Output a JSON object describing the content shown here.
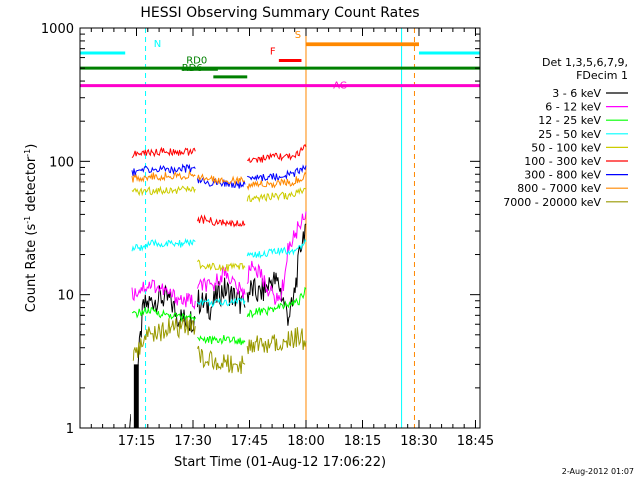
{
  "chart_data": {
    "type": "line",
    "title": "HESSI Observing Summary Count Rates",
    "xlabel": "Start Time (01-Aug-12 17:06:22)",
    "ylabel_main": "Count Rate (s",
    "ylabel_sup1": "-1",
    "ylabel_mid": " detector",
    "ylabel_sup2": "-1",
    "ylabel_end": ")",
    "yscale": "log",
    "ylim": [
      1,
      1000
    ],
    "xlim_minutes": [
      17.0,
      18.77
    ],
    "x_ticks": [
      "17:15",
      "17:30",
      "17:45",
      "18:00",
      "18:15",
      "18:30",
      "18:45"
    ],
    "x_tick_minutes": [
      17.25,
      17.5,
      17.75,
      18.0,
      18.25,
      18.5,
      18.75
    ],
    "y_ticks": [
      "1",
      "10",
      "100",
      "1000"
    ],
    "y_tick_values": [
      1,
      10,
      100,
      1000
    ],
    "legend_header": [
      "Det 1,3,5,6,7,9,",
      "FDecim 1"
    ],
    "series": [
      {
        "name": "3 - 6 keV",
        "color": "#000000",
        "segments": [
          [
            [
              17.22,
              1
            ],
            [
              17.23,
              1.1
            ],
            [
              17.25,
              2.2
            ],
            [
              17.28,
              8
            ],
            [
              17.32,
              9
            ],
            [
              17.36,
              9.5
            ],
            [
              17.4,
              9
            ],
            [
              17.43,
              7
            ],
            [
              17.46,
              6.5
            ],
            [
              17.49,
              6.5
            ],
            [
              17.51,
              6.6
            ]
          ],
          [
            [
              17.52,
              9
            ],
            [
              17.55,
              8.5
            ],
            [
              17.58,
              8
            ],
            [
              17.61,
              10
            ],
            [
              17.64,
              11
            ],
            [
              17.67,
              10
            ],
            [
              17.7,
              9
            ],
            [
              17.73,
              8
            ]
          ],
          [
            [
              17.74,
              10
            ],
            [
              17.76,
              11
            ],
            [
              17.79,
              10
            ],
            [
              17.82,
              11
            ],
            [
              17.85,
              13
            ],
            [
              17.88,
              12
            ],
            [
              17.9,
              9
            ],
            [
              17.92,
              7
            ],
            [
              17.94,
              8
            ],
            [
              17.96,
              14
            ],
            [
              17.98,
              25
            ],
            [
              18.0,
              34
            ]
          ]
        ]
      },
      {
        "name": "6 - 12 keV",
        "color": "#ff00ff",
        "segments": [
          [
            [
              17.23,
              10
            ],
            [
              17.28,
              11.5
            ],
            [
              17.32,
              12
            ],
            [
              17.36,
              11
            ],
            [
              17.4,
              10
            ],
            [
              17.43,
              9.5
            ],
            [
              17.46,
              9
            ],
            [
              17.49,
              9
            ],
            [
              17.51,
              9
            ]
          ],
          [
            [
              17.52,
              11
            ],
            [
              17.55,
              12
            ],
            [
              17.58,
              11
            ],
            [
              17.61,
              13
            ],
            [
              17.64,
              15
            ],
            [
              17.67,
              13
            ],
            [
              17.7,
              11
            ],
            [
              17.73,
              10
            ]
          ],
          [
            [
              17.74,
              13
            ],
            [
              17.76,
              17
            ],
            [
              17.79,
              15
            ],
            [
              17.82,
              12
            ],
            [
              17.85,
              10
            ],
            [
              17.88,
              9
            ],
            [
              17.9,
              12
            ],
            [
              17.92,
              22
            ],
            [
              17.95,
              28
            ],
            [
              17.98,
              36
            ],
            [
              18.0,
              42
            ]
          ]
        ]
      },
      {
        "name": "12 - 25 keV",
        "color": "#00ff00",
        "segments": [
          [
            [
              17.23,
              7
            ],
            [
              17.28,
              7.5
            ],
            [
              17.32,
              7.5
            ],
            [
              17.36,
              7.2
            ],
            [
              17.4,
              7
            ],
            [
              17.45,
              6.8
            ],
            [
              17.51,
              6.8
            ]
          ],
          [
            [
              17.52,
              4.8
            ],
            [
              17.56,
              4.6
            ],
            [
              17.6,
              4.5
            ],
            [
              17.65,
              4.7
            ],
            [
              17.7,
              4.5
            ],
            [
              17.73,
              4.4
            ]
          ],
          [
            [
              17.74,
              7
            ],
            [
              17.78,
              7.5
            ],
            [
              17.82,
              7.5
            ],
            [
              17.86,
              7.8
            ],
            [
              17.9,
              8.2
            ],
            [
              17.94,
              8.5
            ],
            [
              17.97,
              9
            ],
            [
              18.0,
              11
            ]
          ]
        ]
      },
      {
        "name": "25 - 50 keV",
        "color": "#00ffff",
        "segments": [
          [
            [
              17.23,
              22
            ],
            [
              17.28,
              23
            ],
            [
              17.32,
              24
            ],
            [
              17.36,
              24
            ],
            [
              17.4,
              24
            ],
            [
              17.45,
              24
            ],
            [
              17.51,
              25
            ]
          ],
          [
            [
              17.52,
              9
            ],
            [
              17.56,
              8.8
            ],
            [
              17.6,
              8.6
            ],
            [
              17.65,
              8.8
            ],
            [
              17.7,
              9
            ],
            [
              17.73,
              9
            ]
          ],
          [
            [
              17.74,
              20
            ],
            [
              17.78,
              20
            ],
            [
              17.82,
              20.5
            ],
            [
              17.86,
              21
            ],
            [
              17.9,
              21
            ],
            [
              17.94,
              21.5
            ],
            [
              17.97,
              23
            ],
            [
              18.0,
              25
            ]
          ]
        ]
      },
      {
        "name": "50 - 100 keV",
        "color": "#cccc00",
        "segments": [
          [
            [
              17.23,
              58
            ],
            [
              17.28,
              60
            ],
            [
              17.32,
              60
            ],
            [
              17.36,
              61
            ],
            [
              17.4,
              61
            ],
            [
              17.45,
              61
            ],
            [
              17.51,
              62
            ]
          ],
          [
            [
              17.52,
              17
            ],
            [
              17.56,
              16.5
            ],
            [
              17.6,
              16.5
            ],
            [
              17.65,
              16
            ],
            [
              17.7,
              16
            ],
            [
              17.73,
              16
            ]
          ],
          [
            [
              17.74,
              53
            ],
            [
              17.78,
              54
            ],
            [
              17.82,
              54
            ],
            [
              17.86,
              55
            ],
            [
              17.9,
              55
            ],
            [
              17.94,
              56
            ],
            [
              17.97,
              58
            ],
            [
              18.0,
              62
            ]
          ]
        ]
      },
      {
        "name": "100 - 300 keV",
        "color": "#ff0000",
        "segments": [
          [
            [
              17.23,
              112
            ],
            [
              17.28,
              115
            ],
            [
              17.32,
              117
            ],
            [
              17.36,
              118
            ],
            [
              17.4,
              118
            ],
            [
              17.45,
              118
            ],
            [
              17.51,
              119
            ]
          ],
          [
            [
              17.52,
              37
            ],
            [
              17.56,
              36
            ],
            [
              17.6,
              35
            ],
            [
              17.65,
              34
            ],
            [
              17.7,
              34
            ],
            [
              17.73,
              34
            ]
          ],
          [
            [
              17.74,
              102
            ],
            [
              17.78,
              104
            ],
            [
              17.82,
              105
            ],
            [
              17.86,
              107
            ],
            [
              17.9,
              108
            ],
            [
              17.94,
              110
            ],
            [
              17.97,
              115
            ],
            [
              18.0,
              128
            ]
          ]
        ]
      },
      {
        "name": "300 - 800 keV",
        "color": "#0000ff",
        "segments": [
          [
            [
              17.23,
              83
            ],
            [
              17.28,
              86
            ],
            [
              17.32,
              87
            ],
            [
              17.36,
              87
            ],
            [
              17.4,
              87
            ],
            [
              17.45,
              88
            ],
            [
              17.51,
              88
            ]
          ],
          [
            [
              17.52,
              71
            ],
            [
              17.56,
              70
            ],
            [
              17.6,
              69
            ],
            [
              17.65,
              68
            ],
            [
              17.7,
              67
            ],
            [
              17.73,
              67
            ]
          ],
          [
            [
              17.74,
              74
            ],
            [
              17.78,
              75
            ],
            [
              17.82,
              76
            ],
            [
              17.86,
              77
            ],
            [
              17.9,
              78
            ],
            [
              17.94,
              80
            ],
            [
              17.97,
              85
            ],
            [
              18.0,
              93
            ]
          ]
        ]
      },
      {
        "name": "800 - 7000 keV",
        "color": "#ff8800",
        "segments": [
          [
            [
              17.23,
              74
            ],
            [
              17.28,
              76
            ],
            [
              17.32,
              77
            ],
            [
              17.36,
              77
            ],
            [
              17.4,
              78
            ],
            [
              17.45,
              78
            ],
            [
              17.51,
              78
            ]
          ],
          [
            [
              17.52,
              75
            ],
            [
              17.56,
              74
            ],
            [
              17.6,
              73
            ],
            [
              17.65,
              72
            ],
            [
              17.7,
              72
            ],
            [
              17.73,
              71
            ]
          ],
          [
            [
              17.74,
              66
            ],
            [
              17.78,
              67
            ],
            [
              17.82,
              68
            ],
            [
              17.86,
              68
            ],
            [
              17.9,
              69
            ],
            [
              17.94,
              70
            ],
            [
              17.97,
              74
            ],
            [
              18.0,
              80
            ]
          ],
          [
            [
              18.0,
              750
            ],
            [
              18.5,
              750
            ]
          ]
        ]
      },
      {
        "name": "7000 - 20000 keV",
        "color": "#999900",
        "segments": [
          [
            [
              17.23,
              3
            ],
            [
              17.26,
              4
            ],
            [
              17.3,
              5
            ],
            [
              17.34,
              5.2
            ],
            [
              17.38,
              5.5
            ],
            [
              17.42,
              5.6
            ],
            [
              17.46,
              5.7
            ],
            [
              17.51,
              5.8
            ]
          ],
          [
            [
              17.52,
              3.5
            ],
            [
              17.56,
              3.3
            ],
            [
              17.6,
              3.2
            ],
            [
              17.65,
              3.1
            ],
            [
              17.7,
              3
            ],
            [
              17.73,
              3
            ]
          ],
          [
            [
              17.74,
              4
            ],
            [
              17.78,
              4.1
            ],
            [
              17.82,
              4.3
            ],
            [
              17.86,
              4.5
            ],
            [
              17.9,
              4.6
            ],
            [
              17.94,
              4.7
            ],
            [
              17.97,
              4.8
            ],
            [
              18.0,
              4.5
            ]
          ]
        ]
      }
    ],
    "flag_lines": [
      {
        "label": "N",
        "color": "#00ffff",
        "segments": [
          [
            17.0,
            17.2
          ],
          [
            18.5,
            18.77
          ]
        ],
        "value": 650
      },
      {
        "label": "",
        "color": "#008000",
        "segments": [
          [
            17.0,
            18.77
          ]
        ],
        "value": 500
      },
      {
        "label": "AC",
        "color": "#ff00cc",
        "segments": [
          [
            17.0,
            18.77
          ]
        ],
        "value": 370
      },
      {
        "label": "RD0",
        "color": "#008000",
        "segments": [
          [
            17.45,
            17.61
          ]
        ],
        "value": 490
      },
      {
        "label": "RD6",
        "color": "#008000",
        "segments": [
          [
            17.59,
            17.74
          ]
        ],
        "value": 430
      },
      {
        "label": "F",
        "color": "#ff0000",
        "segments": [
          [
            17.88,
            17.98
          ]
        ],
        "value": 570
      },
      {
        "label": "S",
        "color": "#ff8800",
        "segments": [
          [
            18.0,
            18.5
          ]
        ],
        "value": 760
      }
    ],
    "vlines": [
      {
        "minute": 17.0,
        "color": "#00ffff",
        "style": "solid"
      },
      {
        "minute": 17.29,
        "color": "#00ffff",
        "style": "dashed"
      },
      {
        "minute": 18.0,
        "color": "#ff8800",
        "style": "solid"
      },
      {
        "minute": 18.423,
        "color": "#00ffff",
        "style": "solid"
      },
      {
        "minute": 18.48,
        "color": "#ff8800",
        "style": "dashed"
      },
      {
        "minute": 18.77,
        "color": "#00ffff",
        "style": "dashed"
      }
    ],
    "legend_placement": "right",
    "grid": false
  },
  "footer": {
    "timestamp": "2-Aug-2012 01:07"
  }
}
